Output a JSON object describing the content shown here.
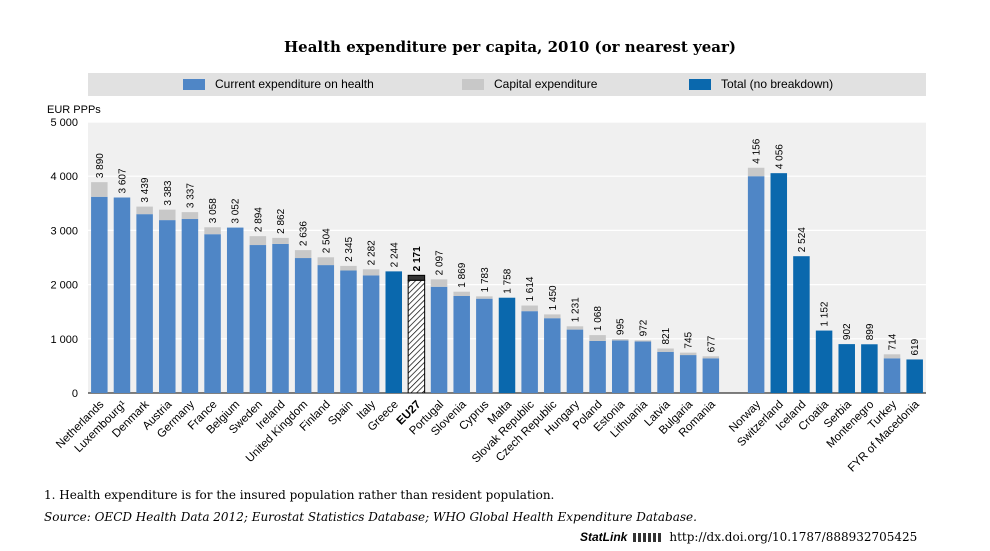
{
  "title": "Health expenditure per capita, 2010 (or nearest year)",
  "legend": [
    {
      "label": "Current expenditure on health",
      "color": "#4f86c6"
    },
    {
      "label": "Capital expenditure",
      "color": "#c8c8c8"
    },
    {
      "label": "Total (no breakdown)",
      "color": "#0a68ad"
    }
  ],
  "footnote": "1.  Health expenditure is for the insured population rather than resident population.",
  "source": "Source:  OECD Health Data 2012; Eurostat Statistics Database; WHO Global Health Expenditure Database.",
  "statlink": {
    "logo": "StatLink",
    "url": "http://dx.doi.org/10.1787/888932705425"
  },
  "chart_data": {
    "type": "bar",
    "stacked": true,
    "ylabel": "EUR PPPs",
    "ylim": [
      0,
      5000
    ],
    "yticks": [
      0,
      1000,
      2000,
      3000,
      4000,
      5000
    ],
    "ytick_labels": [
      "0",
      "1 000",
      "2 000",
      "3 000",
      "4 000",
      "5 000"
    ],
    "grid": true,
    "legend_position": "top",
    "colors": {
      "current": "#4f86c6",
      "capital": "#c8c8c8",
      "total": "#0a68ad",
      "eu_hatch": "#000000",
      "eu_top": "#333333"
    },
    "bars": [
      {
        "label": "Netherlands",
        "kind": "stack",
        "total": 3890,
        "total_label": "3 890",
        "current": 3620
      },
      {
        "label": "Luxembourg¹",
        "kind": "stack",
        "total": 3607,
        "total_label": "3 607",
        "current": 3607
      },
      {
        "label": "Denmark",
        "kind": "stack",
        "total": 3439,
        "total_label": "3 439",
        "current": 3300
      },
      {
        "label": "Austria",
        "kind": "stack",
        "total": 3383,
        "total_label": "3 383",
        "current": 3190
      },
      {
        "label": "Germany",
        "kind": "stack",
        "total": 3337,
        "total_label": "3 337",
        "current": 3210
      },
      {
        "label": "France",
        "kind": "stack",
        "total": 3058,
        "total_label": "3 058",
        "current": 2930
      },
      {
        "label": "Belgium",
        "kind": "stack",
        "total": 3052,
        "total_label": "3 052",
        "current": 3052
      },
      {
        "label": "Sweden",
        "kind": "stack",
        "total": 2894,
        "total_label": "2 894",
        "current": 2730
      },
      {
        "label": "Ireland",
        "kind": "stack",
        "total": 2862,
        "total_label": "2 862",
        "current": 2750
      },
      {
        "label": "United Kingdom",
        "kind": "stack",
        "total": 2636,
        "total_label": "2 636",
        "current": 2490
      },
      {
        "label": "Finland",
        "kind": "stack",
        "total": 2504,
        "total_label": "2 504",
        "current": 2360
      },
      {
        "label": "Spain",
        "kind": "stack",
        "total": 2345,
        "total_label": "2 345",
        "current": 2260
      },
      {
        "label": "Italy",
        "kind": "stack",
        "total": 2282,
        "total_label": "2 282",
        "current": 2170
      },
      {
        "label": "Greece",
        "kind": "total",
        "total": 2244,
        "total_label": "2 244"
      },
      {
        "label": "EU27",
        "kind": "eu",
        "total": 2171,
        "total_label": "2 171",
        "current": 2080
      },
      {
        "label": "Portugal",
        "kind": "stack",
        "total": 2097,
        "total_label": "2 097",
        "current": 1960
      },
      {
        "label": "Slovenia",
        "kind": "stack",
        "total": 1869,
        "total_label": "1 869",
        "current": 1790
      },
      {
        "label": "Cyprus",
        "kind": "stack",
        "total": 1783,
        "total_label": "1 783",
        "current": 1740
      },
      {
        "label": "Malta",
        "kind": "total",
        "total": 1758,
        "total_label": "1 758"
      },
      {
        "label": "Slovak Republic",
        "kind": "stack",
        "total": 1614,
        "total_label": "1 614",
        "current": 1510
      },
      {
        "label": "Czech Republic",
        "kind": "stack",
        "total": 1450,
        "total_label": "1 450",
        "current": 1380
      },
      {
        "label": "Hungary",
        "kind": "stack",
        "total": 1231,
        "total_label": "1 231",
        "current": 1170
      },
      {
        "label": "Poland",
        "kind": "stack",
        "total": 1068,
        "total_label": "1 068",
        "current": 960
      },
      {
        "label": "Estonia",
        "kind": "stack",
        "total": 995,
        "total_label": "995",
        "current": 970
      },
      {
        "label": "Lithuania",
        "kind": "stack",
        "total": 972,
        "total_label": "972",
        "current": 950
      },
      {
        "label": "Latvia",
        "kind": "stack",
        "total": 821,
        "total_label": "821",
        "current": 760
      },
      {
        "label": "Bulgaria",
        "kind": "stack",
        "total": 745,
        "total_label": "745",
        "current": 700
      },
      {
        "label": "Romania",
        "kind": "stack",
        "total": 677,
        "total_label": "677",
        "current": 640
      },
      {
        "label": "",
        "kind": "gap"
      },
      {
        "label": "Norway",
        "kind": "stack",
        "total": 4156,
        "total_label": "4 156",
        "current": 4000
      },
      {
        "label": "Switzerland",
        "kind": "total",
        "total": 4056,
        "total_label": "4 056"
      },
      {
        "label": "Iceland",
        "kind": "total",
        "total": 2524,
        "total_label": "2 524"
      },
      {
        "label": "Croatia",
        "kind": "total",
        "total": 1152,
        "total_label": "1 152"
      },
      {
        "label": "Serbia",
        "kind": "total",
        "total": 902,
        "total_label": "902"
      },
      {
        "label": "Montenegro",
        "kind": "total",
        "total": 899,
        "total_label": "899"
      },
      {
        "label": "Turkey",
        "kind": "stack",
        "total": 714,
        "total_label": "714",
        "current": 640
      },
      {
        "label": "FYR of Macedonia",
        "kind": "total",
        "total": 619,
        "total_label": "619"
      }
    ]
  }
}
